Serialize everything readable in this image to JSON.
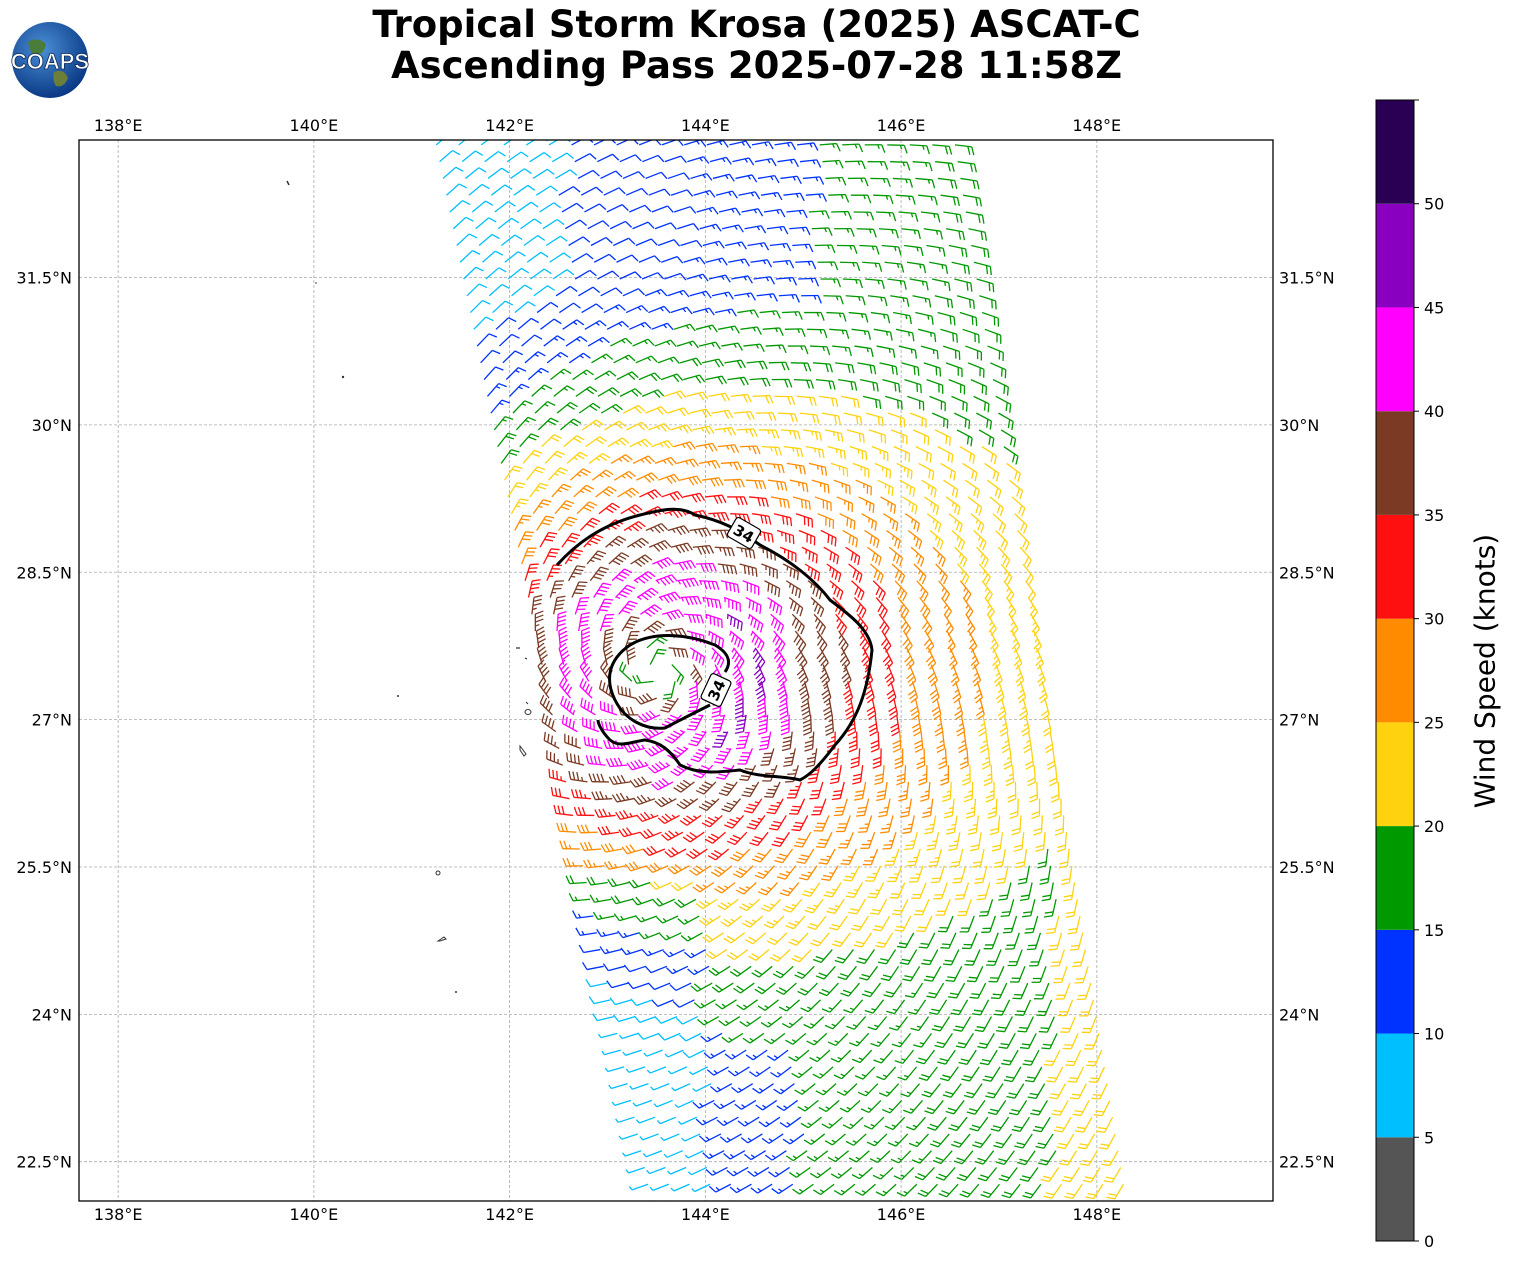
{
  "title": {
    "line1": "Tropical Storm Krosa (2025) ASCAT-C",
    "line2": "Ascending Pass 2025-07-28 11:58Z"
  },
  "logo": {
    "text": "COAPS",
    "icon": "globe-icon"
  },
  "map": {
    "lon_range": [
      137.6,
      149.8
    ],
    "lat_range": [
      22.1,
      32.9
    ],
    "lon_ticks": [
      "138°E",
      "140°E",
      "142°E",
      "144°E",
      "146°E",
      "148°E"
    ],
    "lon_tick_values": [
      138,
      140,
      142,
      144,
      146,
      148
    ],
    "lat_ticks": [
      "31.5°N",
      "30°N",
      "28.5°N",
      "27°N",
      "25.5°N",
      "24°N",
      "22.5°N"
    ],
    "lat_tick_values": [
      31.5,
      30,
      28.5,
      27,
      25.5,
      24,
      22.5
    ],
    "grid": true,
    "storm_center": [
      143.5,
      27.5
    ],
    "contour_level_label": "34",
    "swath_color_note": "wind barbs colored by speed"
  },
  "colorbar": {
    "label": "Wind Speed (knots)",
    "ticks": [
      "0",
      "5",
      "10",
      "15",
      "20",
      "25",
      "30",
      "35",
      "40",
      "45",
      "50"
    ],
    "bins": [
      {
        "from": 0,
        "to": 5,
        "color": "#555555"
      },
      {
        "from": 5,
        "to": 10,
        "color": "#00bfff"
      },
      {
        "from": 10,
        "to": 15,
        "color": "#0033ff"
      },
      {
        "from": 15,
        "to": 20,
        "color": "#009900"
      },
      {
        "from": 20,
        "to": 25,
        "color": "#ffd20f"
      },
      {
        "from": 25,
        "to": 30,
        "color": "#ff8c00"
      },
      {
        "from": 30,
        "to": 35,
        "color": "#ff1010"
      },
      {
        "from": 35,
        "to": 40,
        "color": "#7b3a24"
      },
      {
        "from": 40,
        "to": 45,
        "color": "#ff00ff"
      },
      {
        "from": 45,
        "to": 50,
        "color": "#8a00c0"
      },
      {
        "from": 50,
        "to": 55,
        "color": "#2a0055"
      }
    ]
  }
}
